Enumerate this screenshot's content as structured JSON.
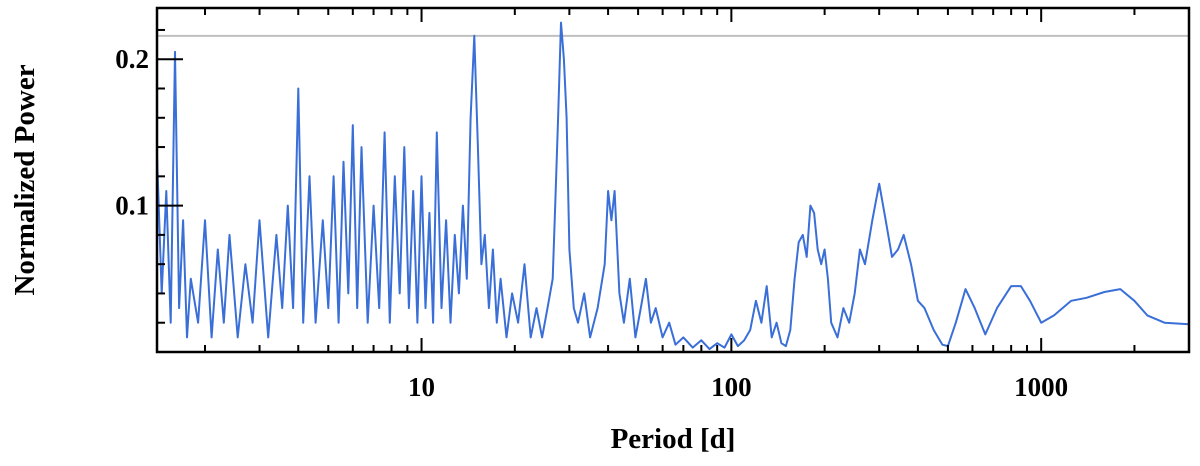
{
  "chart_data": {
    "type": "line",
    "title": "",
    "xlabel": "Period [d]",
    "ylabel": "Normalized Power",
    "x_scale": "log",
    "xlim": [
      1.4,
      3000
    ],
    "ylim": [
      0.0,
      0.235
    ],
    "x_ticks": [
      {
        "value": 10,
        "label": "10"
      },
      {
        "value": 100,
        "label": "100"
      },
      {
        "value": 1000,
        "label": "1000"
      }
    ],
    "y_ticks": [
      {
        "value": 0.1,
        "label": "0.1"
      },
      {
        "value": 0.2,
        "label": "0.2"
      }
    ],
    "grid": false,
    "threshold_line": {
      "y": 0.216,
      "color": "#c0c0c0"
    },
    "series": [
      {
        "color": "#3a6fd8",
        "points": [
          [
            1.4,
            0.135
          ],
          [
            1.45,
            0.04
          ],
          [
            1.5,
            0.11
          ],
          [
            1.55,
            0.02
          ],
          [
            1.6,
            0.205
          ],
          [
            1.65,
            0.03
          ],
          [
            1.7,
            0.09
          ],
          [
            1.75,
            0.01
          ],
          [
            1.8,
            0.05
          ],
          [
            1.9,
            0.02
          ],
          [
            2.0,
            0.09
          ],
          [
            2.1,
            0.01
          ],
          [
            2.2,
            0.07
          ],
          [
            2.3,
            0.02
          ],
          [
            2.4,
            0.08
          ],
          [
            2.55,
            0.01
          ],
          [
            2.7,
            0.06
          ],
          [
            2.85,
            0.02
          ],
          [
            3.0,
            0.09
          ],
          [
            3.2,
            0.01
          ],
          [
            3.4,
            0.08
          ],
          [
            3.55,
            0.03
          ],
          [
            3.7,
            0.1
          ],
          [
            3.85,
            0.03
          ],
          [
            4.0,
            0.18
          ],
          [
            4.15,
            0.02
          ],
          [
            4.35,
            0.12
          ],
          [
            4.55,
            0.02
          ],
          [
            4.8,
            0.09
          ],
          [
            5.0,
            0.03
          ],
          [
            5.2,
            0.12
          ],
          [
            5.4,
            0.02
          ],
          [
            5.6,
            0.13
          ],
          [
            5.8,
            0.04
          ],
          [
            6.0,
            0.155
          ],
          [
            6.2,
            0.03
          ],
          [
            6.4,
            0.14
          ],
          [
            6.7,
            0.02
          ],
          [
            7.0,
            0.1
          ],
          [
            7.3,
            0.03
          ],
          [
            7.6,
            0.15
          ],
          [
            7.9,
            0.02
          ],
          [
            8.2,
            0.12
          ],
          [
            8.5,
            0.04
          ],
          [
            8.8,
            0.14
          ],
          [
            9.1,
            0.03
          ],
          [
            9.4,
            0.11
          ],
          [
            9.7,
            0.02
          ],
          [
            10.0,
            0.12
          ],
          [
            10.3,
            0.03
          ],
          [
            10.6,
            0.095
          ],
          [
            10.9,
            0.02
          ],
          [
            11.2,
            0.15
          ],
          [
            11.6,
            0.03
          ],
          [
            12.0,
            0.09
          ],
          [
            12.4,
            0.02
          ],
          [
            12.8,
            0.08
          ],
          [
            13.2,
            0.04
          ],
          [
            13.6,
            0.1
          ],
          [
            14.0,
            0.05
          ],
          [
            14.4,
            0.16
          ],
          [
            14.8,
            0.216
          ],
          [
            15.2,
            0.14
          ],
          [
            15.6,
            0.06
          ],
          [
            16.0,
            0.08
          ],
          [
            16.5,
            0.03
          ],
          [
            17.0,
            0.07
          ],
          [
            17.5,
            0.02
          ],
          [
            18.0,
            0.05
          ],
          [
            18.8,
            0.01
          ],
          [
            19.6,
            0.04
          ],
          [
            20.5,
            0.02
          ],
          [
            21.5,
            0.06
          ],
          [
            22.5,
            0.01
          ],
          [
            23.5,
            0.03
          ],
          [
            24.5,
            0.01
          ],
          [
            25.5,
            0.03
          ],
          [
            26.5,
            0.05
          ],
          [
            27.0,
            0.1
          ],
          [
            27.6,
            0.16
          ],
          [
            28.2,
            0.225
          ],
          [
            28.8,
            0.2
          ],
          [
            29.4,
            0.16
          ],
          [
            30.0,
            0.07
          ],
          [
            31.0,
            0.03
          ],
          [
            32.0,
            0.02
          ],
          [
            33.5,
            0.04
          ],
          [
            35.0,
            0.01
          ],
          [
            37.0,
            0.03
          ],
          [
            39.0,
            0.06
          ],
          [
            40.0,
            0.11
          ],
          [
            41.0,
            0.09
          ],
          [
            42.0,
            0.11
          ],
          [
            43.5,
            0.04
          ],
          [
            45.0,
            0.02
          ],
          [
            47.0,
            0.05
          ],
          [
            49.0,
            0.01
          ],
          [
            51.0,
            0.03
          ],
          [
            53.0,
            0.05
          ],
          [
            55.0,
            0.02
          ],
          [
            57.0,
            0.03
          ],
          [
            60.0,
            0.01
          ],
          [
            63.0,
            0.02
          ],
          [
            66.0,
            0.005
          ],
          [
            70.0,
            0.01
          ],
          [
            75.0,
            0.003
          ],
          [
            80.0,
            0.008
          ],
          [
            85.0,
            0.002
          ],
          [
            90.0,
            0.006
          ],
          [
            95.0,
            0.003
          ],
          [
            100.0,
            0.012
          ],
          [
            105.0,
            0.004
          ],
          [
            110.0,
            0.008
          ],
          [
            115.0,
            0.015
          ],
          [
            120.0,
            0.035
          ],
          [
            125.0,
            0.02
          ],
          [
            130.0,
            0.045
          ],
          [
            135.0,
            0.01
          ],
          [
            140.0,
            0.02
          ],
          [
            145.0,
            0.006
          ],
          [
            150.0,
            0.004
          ],
          [
            155.0,
            0.015
          ],
          [
            160.0,
            0.05
          ],
          [
            165.0,
            0.075
          ],
          [
            170.0,
            0.08
          ],
          [
            175.0,
            0.065
          ],
          [
            180.0,
            0.1
          ],
          [
            185.0,
            0.095
          ],
          [
            190.0,
            0.07
          ],
          [
            195.0,
            0.06
          ],
          [
            200.0,
            0.07
          ],
          [
            205.0,
            0.05
          ],
          [
            210.0,
            0.02
          ],
          [
            220.0,
            0.01
          ],
          [
            230.0,
            0.03
          ],
          [
            240.0,
            0.02
          ],
          [
            250.0,
            0.04
          ],
          [
            260.0,
            0.07
          ],
          [
            270.0,
            0.06
          ],
          [
            285.0,
            0.09
          ],
          [
            300.0,
            0.115
          ],
          [
            315.0,
            0.09
          ],
          [
            330.0,
            0.065
          ],
          [
            345.0,
            0.07
          ],
          [
            360.0,
            0.08
          ],
          [
            380.0,
            0.06
          ],
          [
            400.0,
            0.035
          ],
          [
            420.0,
            0.03
          ],
          [
            450.0,
            0.015
          ],
          [
            480.0,
            0.005
          ],
          [
            500.0,
            0.004
          ],
          [
            530.0,
            0.02
          ],
          [
            570.0,
            0.043
          ],
          [
            610.0,
            0.03
          ],
          [
            660.0,
            0.012
          ],
          [
            720.0,
            0.03
          ],
          [
            800.0,
            0.045
          ],
          [
            860.0,
            0.045
          ],
          [
            920.0,
            0.035
          ],
          [
            1000.0,
            0.02
          ],
          [
            1100.0,
            0.025
          ],
          [
            1250.0,
            0.035
          ],
          [
            1400.0,
            0.037
          ],
          [
            1600.0,
            0.041
          ],
          [
            1800.0,
            0.043
          ],
          [
            2000.0,
            0.035
          ],
          [
            2200.0,
            0.025
          ],
          [
            2500.0,
            0.02
          ],
          [
            3000.0,
            0.019
          ]
        ]
      }
    ]
  }
}
